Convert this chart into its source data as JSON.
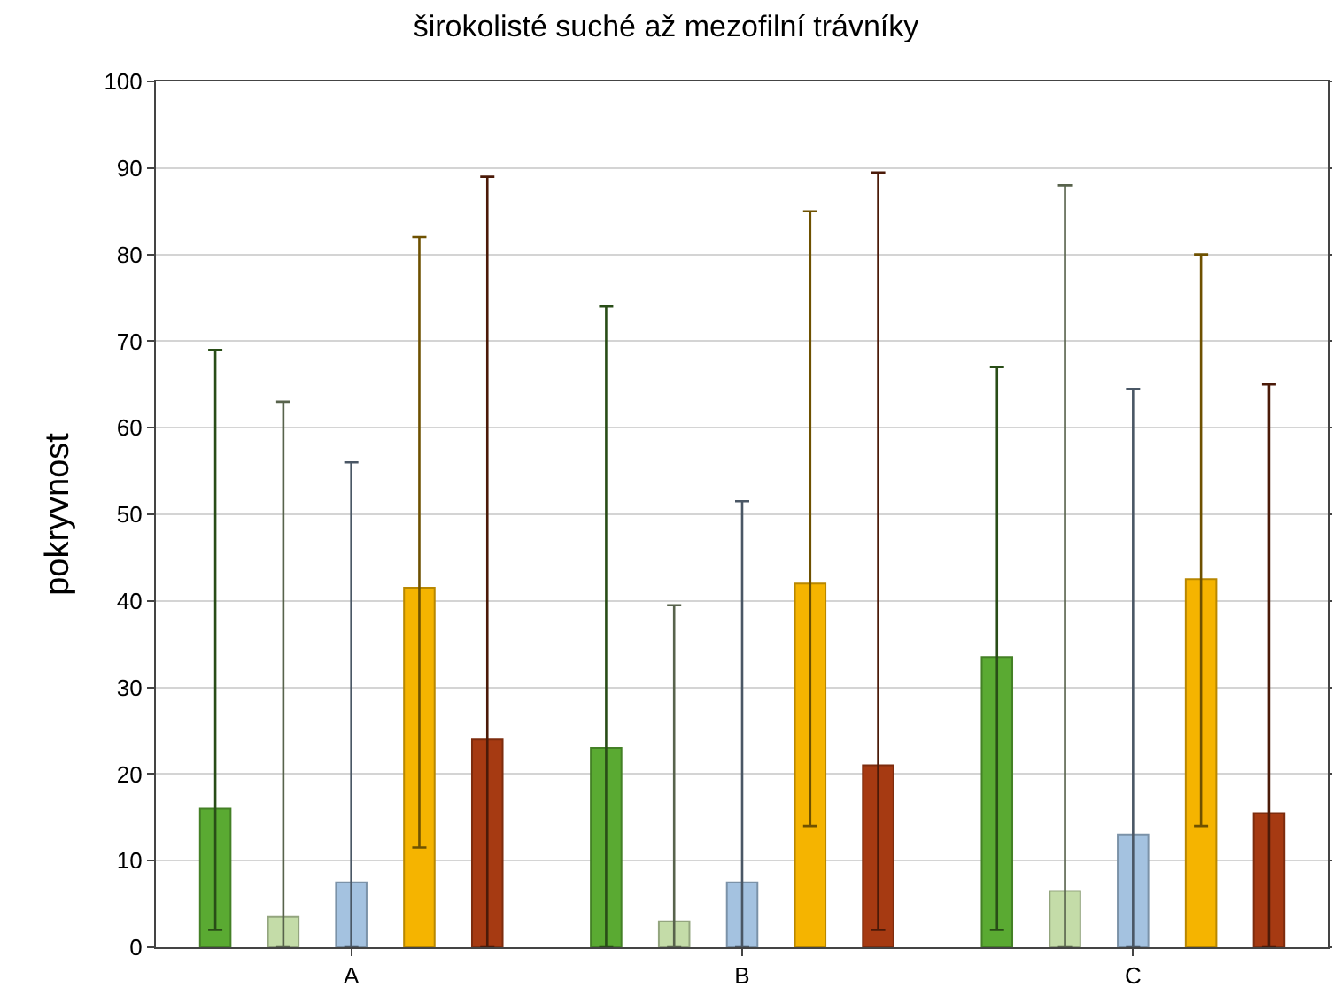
{
  "chart_data": {
    "type": "bar",
    "title": "širokolisté suché až mezofilní trávníky",
    "ylabel": "pokryvnost",
    "categories": [
      "A",
      "B",
      "C"
    ],
    "series": [
      {
        "color": "#5aaa32",
        "values": [
          16,
          23,
          33.5
        ],
        "errors": [
          [
            2,
            69
          ],
          [
            0,
            74
          ],
          [
            2,
            67
          ]
        ]
      },
      {
        "color": "#c4dca8",
        "values": [
          3.5,
          3,
          6.5
        ],
        "errors": [
          [
            0,
            63
          ],
          [
            0,
            39.5
          ],
          [
            0,
            88
          ]
        ]
      },
      {
        "color": "#a4c2e0",
        "values": [
          7.5,
          7.5,
          13
        ],
        "errors": [
          [
            0,
            56
          ],
          [
            0,
            51.5
          ],
          [
            0,
            64.5
          ]
        ]
      },
      {
        "color": "#f5b400",
        "values": [
          41.5,
          42,
          42.5
        ],
        "errors": [
          [
            11.5,
            82
          ],
          [
            14,
            85
          ],
          [
            14,
            80
          ]
        ]
      },
      {
        "color": "#a63a12",
        "values": [
          24,
          21,
          15.5
        ],
        "errors": [
          [
            0,
            89
          ],
          [
            2,
            89.5
          ],
          [
            0,
            65
          ]
        ]
      }
    ],
    "ylim": [
      0,
      100
    ],
    "yticks": [
      0,
      10,
      20,
      30,
      40,
      50,
      60,
      70,
      80,
      90,
      100
    ],
    "grid": "y"
  }
}
